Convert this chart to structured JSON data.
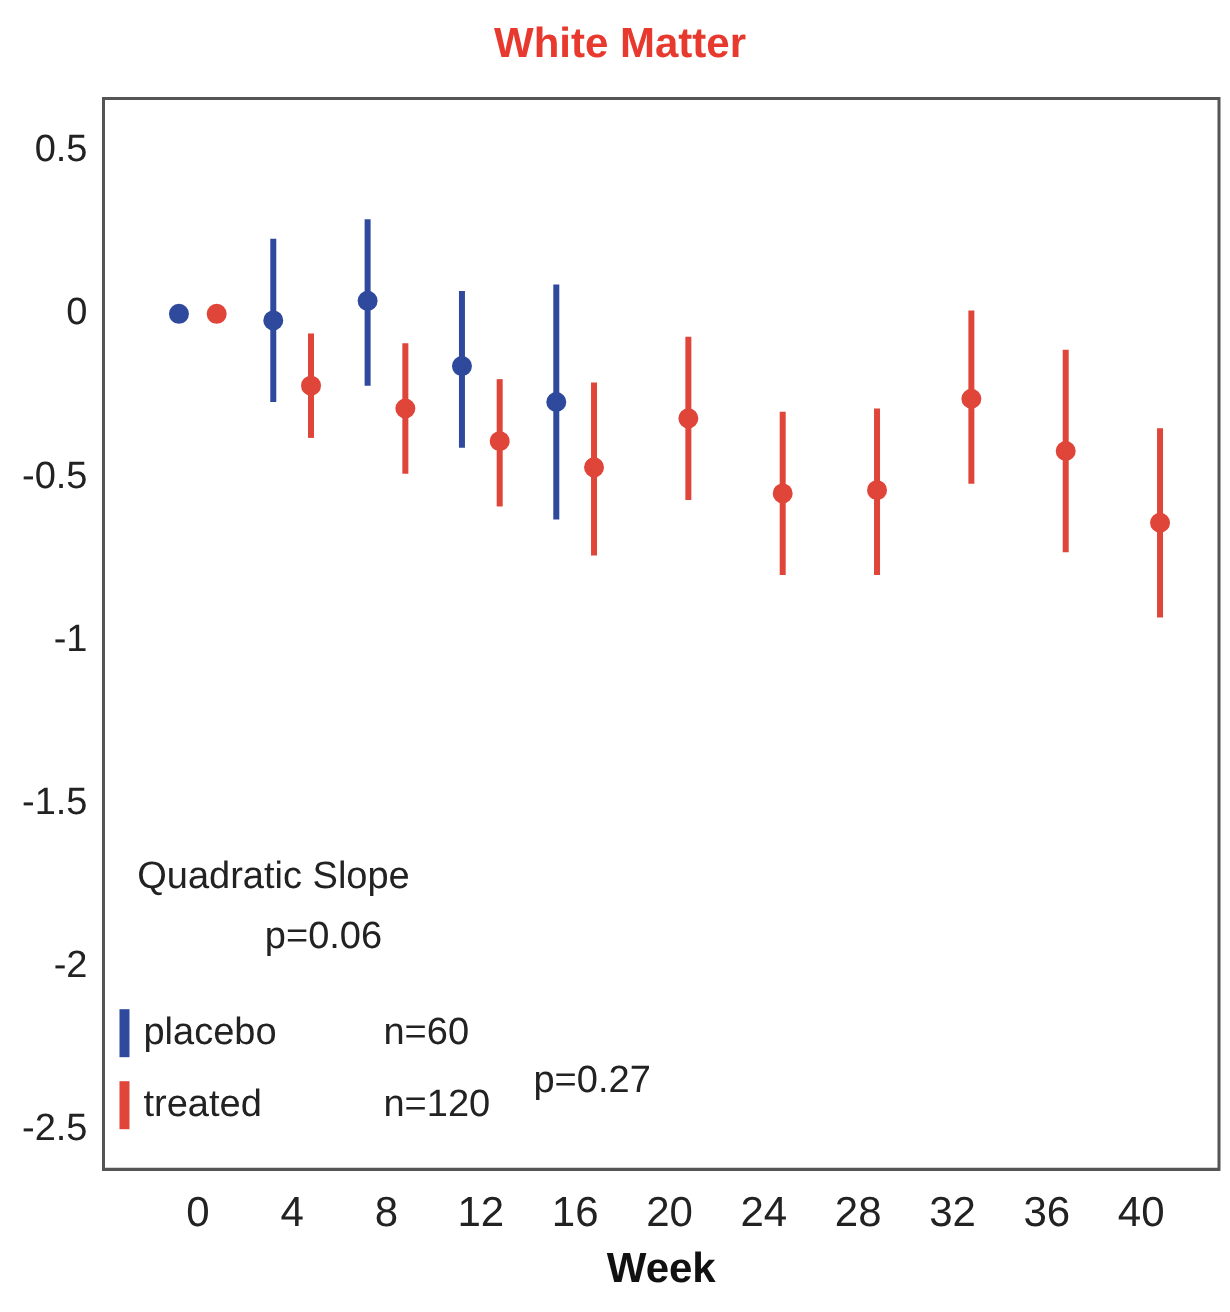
{
  "chart_data": {
    "type": "scatter",
    "title": "White Matter",
    "xlabel": "Week",
    "xlim": [
      -4,
      43.3
    ],
    "xticks": [
      0,
      4,
      8,
      12,
      16,
      20,
      24,
      28,
      32,
      36,
      40
    ],
    "ylim": [
      -2.62,
      0.66
    ],
    "yticks": [
      0.5,
      0,
      -0.5,
      -1,
      -1.5,
      -2,
      -2.5
    ],
    "grid": false,
    "legend": "bottom left",
    "marker": "circle",
    "series": [
      {
        "name": "placebo",
        "color": "#2f4a9c",
        "x": [
          -0.8,
          3.2,
          7.2,
          11.2,
          15.2
        ],
        "values": [
          0,
          -0.02,
          0.04,
          -0.16,
          -0.27
        ],
        "errors": [
          null,
          [
            -0.27,
            0.23
          ],
          [
            -0.22,
            0.29
          ],
          [
            -0.41,
            0.07
          ],
          [
            -0.63,
            0.09
          ]
        ]
      },
      {
        "name": "treated",
        "color": "#e0453a",
        "x": [
          0.8,
          4.8,
          8.8,
          12.8,
          16.8,
          20.8,
          24.8,
          28.8,
          32.8,
          36.8,
          40.8
        ],
        "values": [
          0,
          -0.22,
          -0.29,
          -0.39,
          -0.47,
          -0.32,
          -0.55,
          -0.54,
          -0.26,
          -0.42,
          -0.64
        ],
        "errors": [
          null,
          [
            -0.38,
            -0.06
          ],
          [
            -0.49,
            -0.09
          ],
          [
            -0.59,
            -0.2
          ],
          [
            -0.74,
            -0.21
          ],
          [
            -0.57,
            -0.07
          ],
          [
            -0.8,
            -0.3
          ],
          [
            -0.8,
            -0.29
          ],
          [
            -0.52,
            0.01
          ],
          [
            -0.73,
            -0.11
          ],
          [
            -0.93,
            -0.35
          ]
        ]
      }
    ],
    "annotations": [
      "Quadratic Slope",
      "p=0.06",
      "n=60",
      "n=120",
      "p=0.27"
    ]
  }
}
